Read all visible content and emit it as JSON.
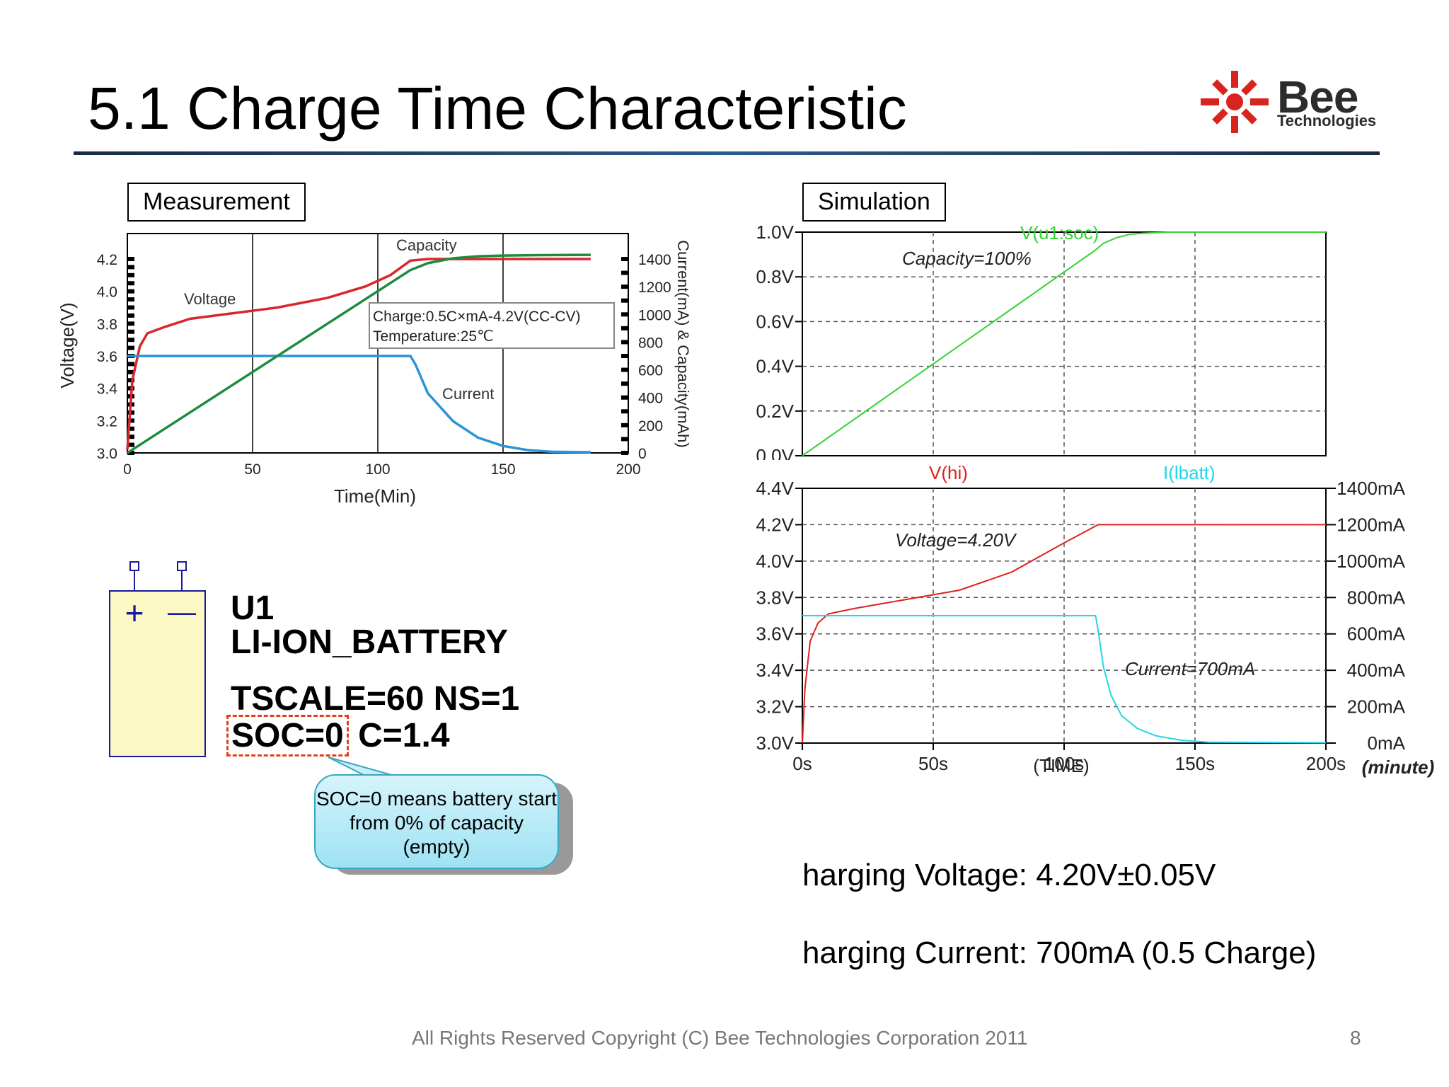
{
  "title": "5.1 Charge Time Characteristic",
  "logo": {
    "name": "Bee",
    "subtitle": "Technologies"
  },
  "measurement_label": "Measurement",
  "simulation_label": "Simulation",
  "component": {
    "ref": "U1",
    "type": "LI-ION_BATTERY",
    "params_line": "TSCALE=60 NS=1",
    "soc": "SOC=0",
    "capacity": "C=1.4",
    "plus_sign": "+",
    "minus_sign": "—"
  },
  "callout": "SOC=0 means battery start from 0% of capacity (empty)",
  "info": {
    "voltage": "harging Voltage: 4.20V±0.05V",
    "current": "harging Current: 700mA (0.5 Charge)"
  },
  "footer": {
    "copyright": "All Rights Reserved Copyright (C) Bee Technologies Corporation 2011",
    "page": "8"
  },
  "colors": {
    "red": "#d9262c",
    "green": "#1e8c3c",
    "blue": "#2c93d6",
    "sim_green": "#35d235",
    "sim_red": "#e02020",
    "sim_cyan": "#22d6e6"
  },
  "chart_data": [
    {
      "type": "line",
      "xlabel": "Time(Min)",
      "ylabel": "Voltage(V)",
      "y2label": "Current(mA) & Capacity(mAh)",
      "xlim": [
        0,
        200
      ],
      "ylim": [
        3.0,
        4.3
      ],
      "y2lim": [
        0,
        1600
      ],
      "xticks": [
        "0",
        "50",
        "100",
        "150",
        "200"
      ],
      "yticks": [
        "3.0",
        "3.2",
        "3.4",
        "3.6",
        "3.8",
        "4.0",
        "4.2"
      ],
      "y2ticks": [
        "0",
        "200",
        "400",
        "600",
        "800",
        "1000",
        "1200",
        "1400"
      ],
      "annotation_lines": [
        "Charge:0.5C×mA-4.2V(CC-CV)",
        "Temperature:25℃"
      ],
      "grid": "vertical",
      "series": [
        {
          "name": "Voltage",
          "axis": "left",
          "x": [
            0,
            2,
            5,
            8,
            15,
            25,
            40,
            60,
            80,
            95,
            105,
            113,
            120,
            150,
            185
          ],
          "y": [
            3.02,
            3.45,
            3.66,
            3.74,
            3.78,
            3.83,
            3.86,
            3.9,
            3.96,
            4.03,
            4.1,
            4.19,
            4.2,
            4.2,
            4.2
          ]
        },
        {
          "name": "Current",
          "axis": "right",
          "x": [
            0,
            113,
            115,
            120,
            130,
            140,
            150,
            160,
            170,
            185
          ],
          "y": [
            700,
            700,
            640,
            430,
            230,
            110,
            50,
            20,
            8,
            5
          ]
        },
        {
          "name": "Capacity",
          "axis": "right",
          "x": [
            0,
            113,
            120,
            130,
            140,
            150,
            165,
            185
          ],
          "y": [
            0,
            1320,
            1370,
            1405,
            1420,
            1425,
            1428,
            1430
          ]
        }
      ],
      "series_labels": [
        "Voltage",
        "Current",
        "Capacity"
      ]
    },
    {
      "type": "line",
      "xlim": [
        0,
        200
      ],
      "ylim": [
        0,
        1.0
      ],
      "yticks": [
        "0.0V",
        "0.2V",
        "0.4V",
        "0.6V",
        "0.8V",
        "1.0V"
      ],
      "grid": "dashed",
      "annotation": "Capacity=100%",
      "series": [
        {
          "name": "V(u1:soc)",
          "x": [
            0,
            112,
            115,
            120,
            125,
            130,
            140,
            150,
            200
          ],
          "y": [
            0,
            0.92,
            0.95,
            0.975,
            0.99,
            0.995,
            1.0,
            1.0,
            1.0
          ]
        }
      ]
    },
    {
      "type": "line",
      "xlabel": "(TIME)",
      "xunit": "(minute)",
      "xlim": [
        0,
        200
      ],
      "ylim": [
        3.0,
        4.4
      ],
      "y2lim": [
        0,
        1400
      ],
      "xticks": [
        "0s",
        "50s",
        "100s",
        "150s",
        "200s"
      ],
      "yticks": [
        "3.0V",
        "3.2V",
        "3.4V",
        "3.6V",
        "3.8V",
        "4.0V",
        "4.2V",
        "4.4V"
      ],
      "y2ticks": [
        "0mA",
        "200mA",
        "400mA",
        "600mA",
        "800mA",
        "1000mA",
        "1200mA",
        "1400mA"
      ],
      "grid": "dashed",
      "annotations": [
        "Voltage=4.20V",
        "Current=700mA"
      ],
      "series": [
        {
          "name": "V(hi)",
          "axis": "left",
          "x": [
            0,
            1,
            3,
            6,
            10,
            20,
            40,
            60,
            80,
            100,
            113,
            150,
            200
          ],
          "y": [
            3.0,
            3.3,
            3.56,
            3.66,
            3.71,
            3.74,
            3.79,
            3.84,
            3.94,
            4.1,
            4.2,
            4.2,
            4.2
          ]
        },
        {
          "name": "I(lbatt)",
          "axis": "right",
          "x": [
            0,
            112,
            113,
            115,
            118,
            122,
            128,
            135,
            145,
            155,
            200
          ],
          "y": [
            700,
            700,
            620,
            420,
            260,
            150,
            80,
            40,
            15,
            5,
            2
          ]
        }
      ]
    }
  ]
}
